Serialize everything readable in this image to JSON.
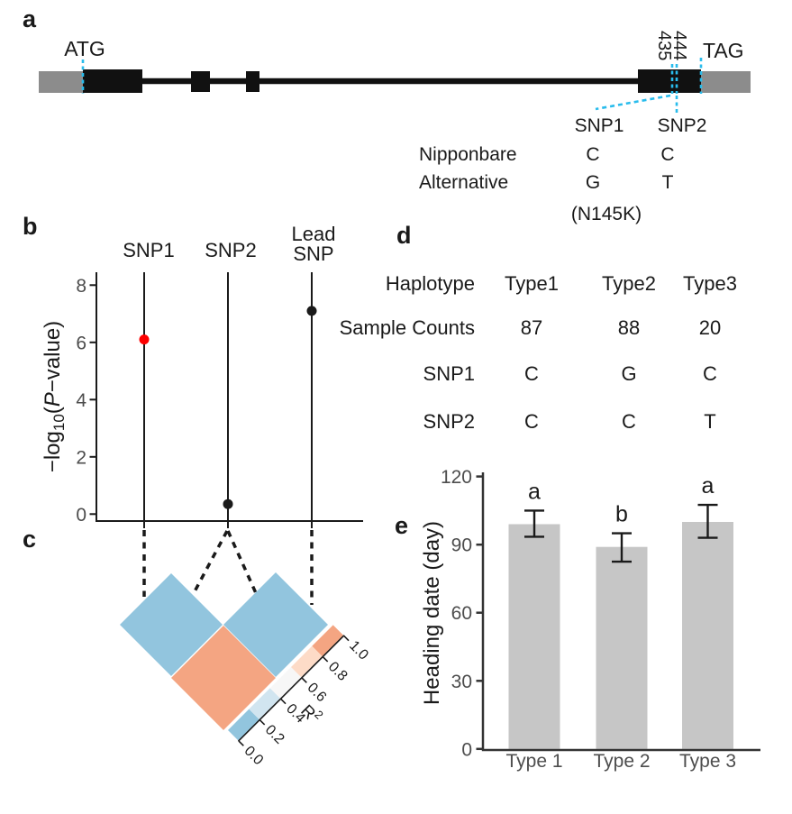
{
  "colors": {
    "red": "#fe0000",
    "cyan": "#29bcec",
    "black": "#1a1a1a",
    "gene_black": "#111111",
    "utr_gray": "#8c8c8c",
    "axis_text_gray": "#4d4d4d",
    "ld_low_blue": "#92c5de",
    "ld_high_orange": "#f4a582",
    "bar_gray": "#c6c6c6"
  },
  "panel_a": {
    "label": "a",
    "start_codon": "ATG",
    "stop_codon": "TAG",
    "pos1": "435",
    "pos2": "444",
    "snp1_label": "SNP1",
    "snp2_label": "SNP2",
    "row1_label": "Nipponbare",
    "row2_label": "Alternative",
    "snp1_nipponbare": "C",
    "snp1_alternative": "G",
    "snp1_effect": "(N145K)",
    "snp2_nipponbare": "C",
    "snp2_alternative": "T"
  },
  "panel_b": {
    "label": "b",
    "col_snp1": "SNP1",
    "col_snp2": "SNP2",
    "col_lead_line1": "Lead",
    "col_lead_line2": "SNP",
    "ytitle_parts": {
      "minus_log": "−log",
      "sub": "10",
      "open": "(",
      "p": "P",
      "rest": "−value)"
    }
  },
  "panel_c": {
    "label": "c",
    "legend_ticks": [
      "0.0",
      "0.2",
      "0.4",
      "0.6",
      "0.8",
      "1.0"
    ],
    "legend_title": "R",
    "legend_title_sup": "2",
    "cell_colors": {
      "snp1_snp2": "#92c5de",
      "snp2_lead": "#92c5de",
      "snp1_lead": "#f4a582"
    }
  },
  "panel_d": {
    "label": "d",
    "rows": [
      {
        "header": "Haplotype",
        "cells": [
          "Type1",
          "Type2",
          "Type3"
        ]
      },
      {
        "header": "Sample Counts",
        "cells": [
          "87",
          "88",
          "20"
        ]
      },
      {
        "header": "SNP1",
        "cells": [
          "C",
          "G",
          "C"
        ]
      },
      {
        "header": "SNP2",
        "cells": [
          "C",
          "C",
          "T"
        ]
      }
    ]
  },
  "panel_e": {
    "label": "e"
  },
  "chart_data": [
    {
      "id": "b",
      "type": "scatter",
      "title": "",
      "x_categories": [
        "SNP1",
        "SNP2",
        "Lead SNP"
      ],
      "values": [
        6.1,
        0.35,
        7.1
      ],
      "point_colors": [
        "#fe0000",
        "#1a1a1a",
        "#1a1a1a"
      ],
      "ylabel": "-log10(P-value)",
      "ylim": [
        0,
        8.5
      ],
      "yticks": [
        0,
        2,
        4,
        6,
        8
      ],
      "grid": false,
      "note": "each point sits on a vertical guide line at its SNP position"
    },
    {
      "id": "c",
      "type": "heatmap",
      "variables": [
        "SNP1",
        "SNP2",
        "Lead SNP"
      ],
      "pairs": [
        {
          "a": "SNP1",
          "b": "SNP2",
          "r2": 0.1
        },
        {
          "a": "SNP2",
          "b": "Lead SNP",
          "r2": 0.1
        },
        {
          "a": "SNP1",
          "b": "Lead SNP",
          "r2": 0.9
        }
      ],
      "legend": {
        "title": "R2",
        "ticks": [
          0.0,
          0.2,
          0.4,
          0.6,
          0.8,
          1.0
        ],
        "colors": [
          "#92c5de",
          "#d1e5f0",
          "#f7f7f7",
          "#fddbc7",
          "#f4a582"
        ],
        "position": "diagonal lower-right"
      }
    },
    {
      "id": "e",
      "type": "bar",
      "categories": [
        "Type 1",
        "Type 2",
        "Type 3"
      ],
      "values": [
        99,
        89,
        100
      ],
      "error_low": [
        93.5,
        82.5,
        93
      ],
      "error_high": [
        105,
        95,
        107.5
      ],
      "sig_letters": [
        "a",
        "b",
        "a"
      ],
      "ylabel": "Heading date (day)",
      "ylim": [
        0,
        120
      ],
      "yticks": [
        0,
        30,
        60,
        90,
        120
      ],
      "bar_color": "#c6c6c6",
      "grid": false
    }
  ]
}
